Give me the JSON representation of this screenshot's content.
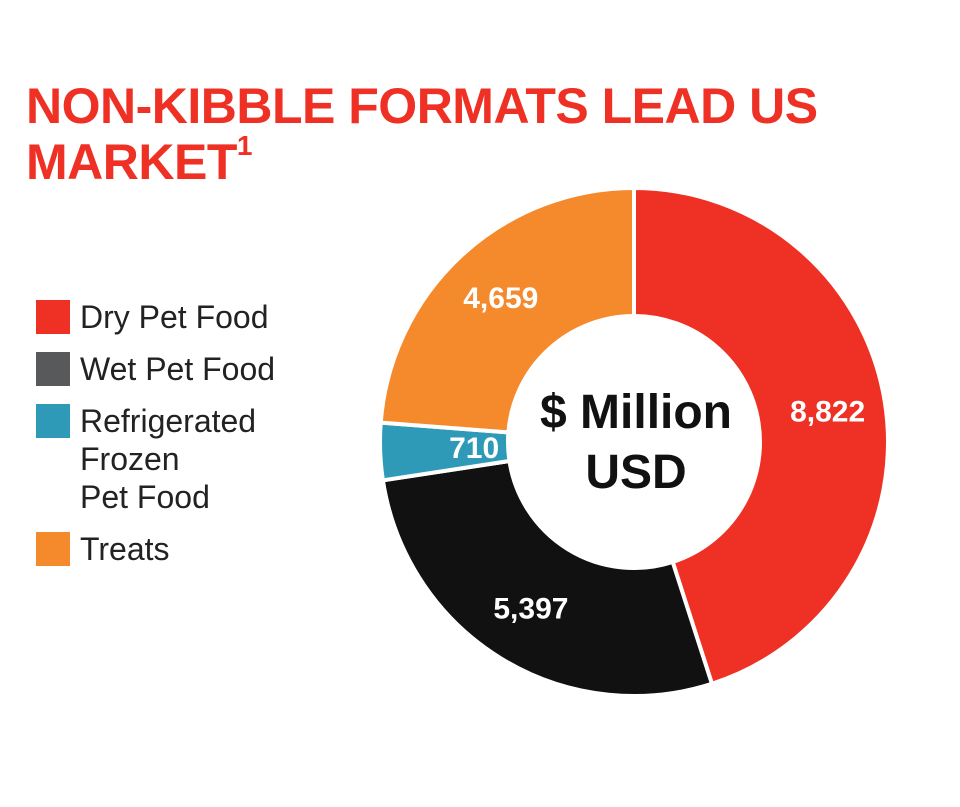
{
  "title": {
    "main": "NON-KIBBLE FORMATS LEAD US MARKET",
    "footnote_marker": "1"
  },
  "legend": [
    {
      "label": "Dry Pet Food",
      "color": "#ee3124"
    },
    {
      "label": "Wet Pet Food",
      "color": "#58595b"
    },
    {
      "label": "Refrigerated\nFrozen\nPet Food",
      "color": "#2e9ab8"
    },
    {
      "label": "Treats",
      "color": "#f58a2d"
    }
  ],
  "chart_data": {
    "type": "pie",
    "donut": true,
    "center_label": [
      "$ Million",
      "USD"
    ],
    "slices": [
      {
        "category": "Dry Pet Food",
        "value": 8822,
        "label": "8,822",
        "color": "#ee3124"
      },
      {
        "category": "Wet Pet Food",
        "value": 5397,
        "label": "5,397",
        "color": "#111111"
      },
      {
        "category": "Refrigerated Frozen Pet Food",
        "value": 710,
        "label": "710",
        "color": "#2e9ab8"
      },
      {
        "category": "Treats",
        "value": 4659,
        "label": "4,659",
        "color": "#f58a2d"
      }
    ],
    "start_angle": "top",
    "direction": "clockwise"
  }
}
